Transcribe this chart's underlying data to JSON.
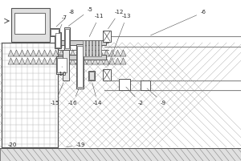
{
  "figsize": [
    3.0,
    2.0
  ],
  "dpi": 100,
  "lc": "#555555",
  "lc2": "#777777",
  "fc_light": "#e8e8e8",
  "fc_white": "#ffffff",
  "fc_gray": "#cccccc",
  "label_fs": 5.0,
  "label_color": "#222222"
}
